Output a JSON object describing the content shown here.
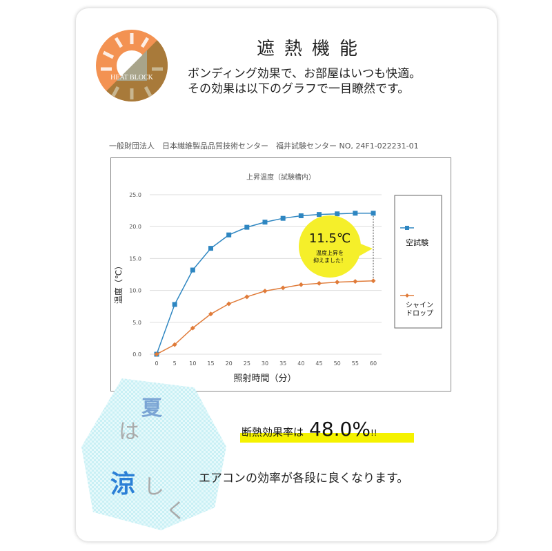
{
  "header": {
    "title": "遮熱機能",
    "subtitle_lines": [
      "ボンディング効果で、お部屋はいつも快適。",
      "その効果は以下のグラフで一目瞭然です。"
    ],
    "logo_text": "HEAT BLOCK"
  },
  "source": "一般財団法人　日本繊維製品品質技術センター　福井試験センター NO, 24F1-022231-01",
  "callout": {
    "value": "11.5℃",
    "text_lines": [
      "温度上昇を",
      "抑えました！"
    ]
  },
  "footer": {
    "ratio_label": "断熱効果率は",
    "ratio_value": "48.0%",
    "ratio_suffix": "!!",
    "aircon": "エアコンの効率が各段に良くなります。",
    "slogan": [
      "夏",
      "は",
      "涼",
      "し",
      "く"
    ]
  },
  "colors": {
    "blank": "#2e86c1",
    "shinedrop": "#e07b39",
    "callout": "#f5ef2a",
    "logo_orange": "#f39252",
    "logo_brown": "#a87a3a"
  },
  "chart_data": {
    "type": "line",
    "title": "上昇温度（試験槽内）",
    "xlabel": "照射時間（分）",
    "ylabel": "温度（℃）",
    "x": [
      0,
      5,
      10,
      15,
      20,
      25,
      30,
      35,
      40,
      45,
      50,
      55,
      60
    ],
    "xticks": [
      "0",
      "5",
      "10",
      "15",
      "20",
      "25",
      "30",
      "35",
      "40",
      "45",
      "50",
      "55",
      "60"
    ],
    "yticks": [
      "0.0",
      "5.0",
      "10.0",
      "15.0",
      "20.0",
      "25.0"
    ],
    "ylim": [
      0,
      25
    ],
    "xlim": [
      0,
      60
    ],
    "grid": true,
    "legend": "right",
    "series": [
      {
        "name": "空試験",
        "marker": "square",
        "values": [
          0,
          7.8,
          13.2,
          16.6,
          18.7,
          19.9,
          20.7,
          21.3,
          21.7,
          21.9,
          22.0,
          22.1,
          22.1
        ]
      },
      {
        "name": "シャインドロップ",
        "legend_lines": [
          "シャイン",
          "ドロップ"
        ],
        "marker": "diamond",
        "values": [
          0,
          1.5,
          4.1,
          6.3,
          7.9,
          9.0,
          9.9,
          10.4,
          10.9,
          11.1,
          11.3,
          11.4,
          11.5
        ]
      }
    ]
  }
}
